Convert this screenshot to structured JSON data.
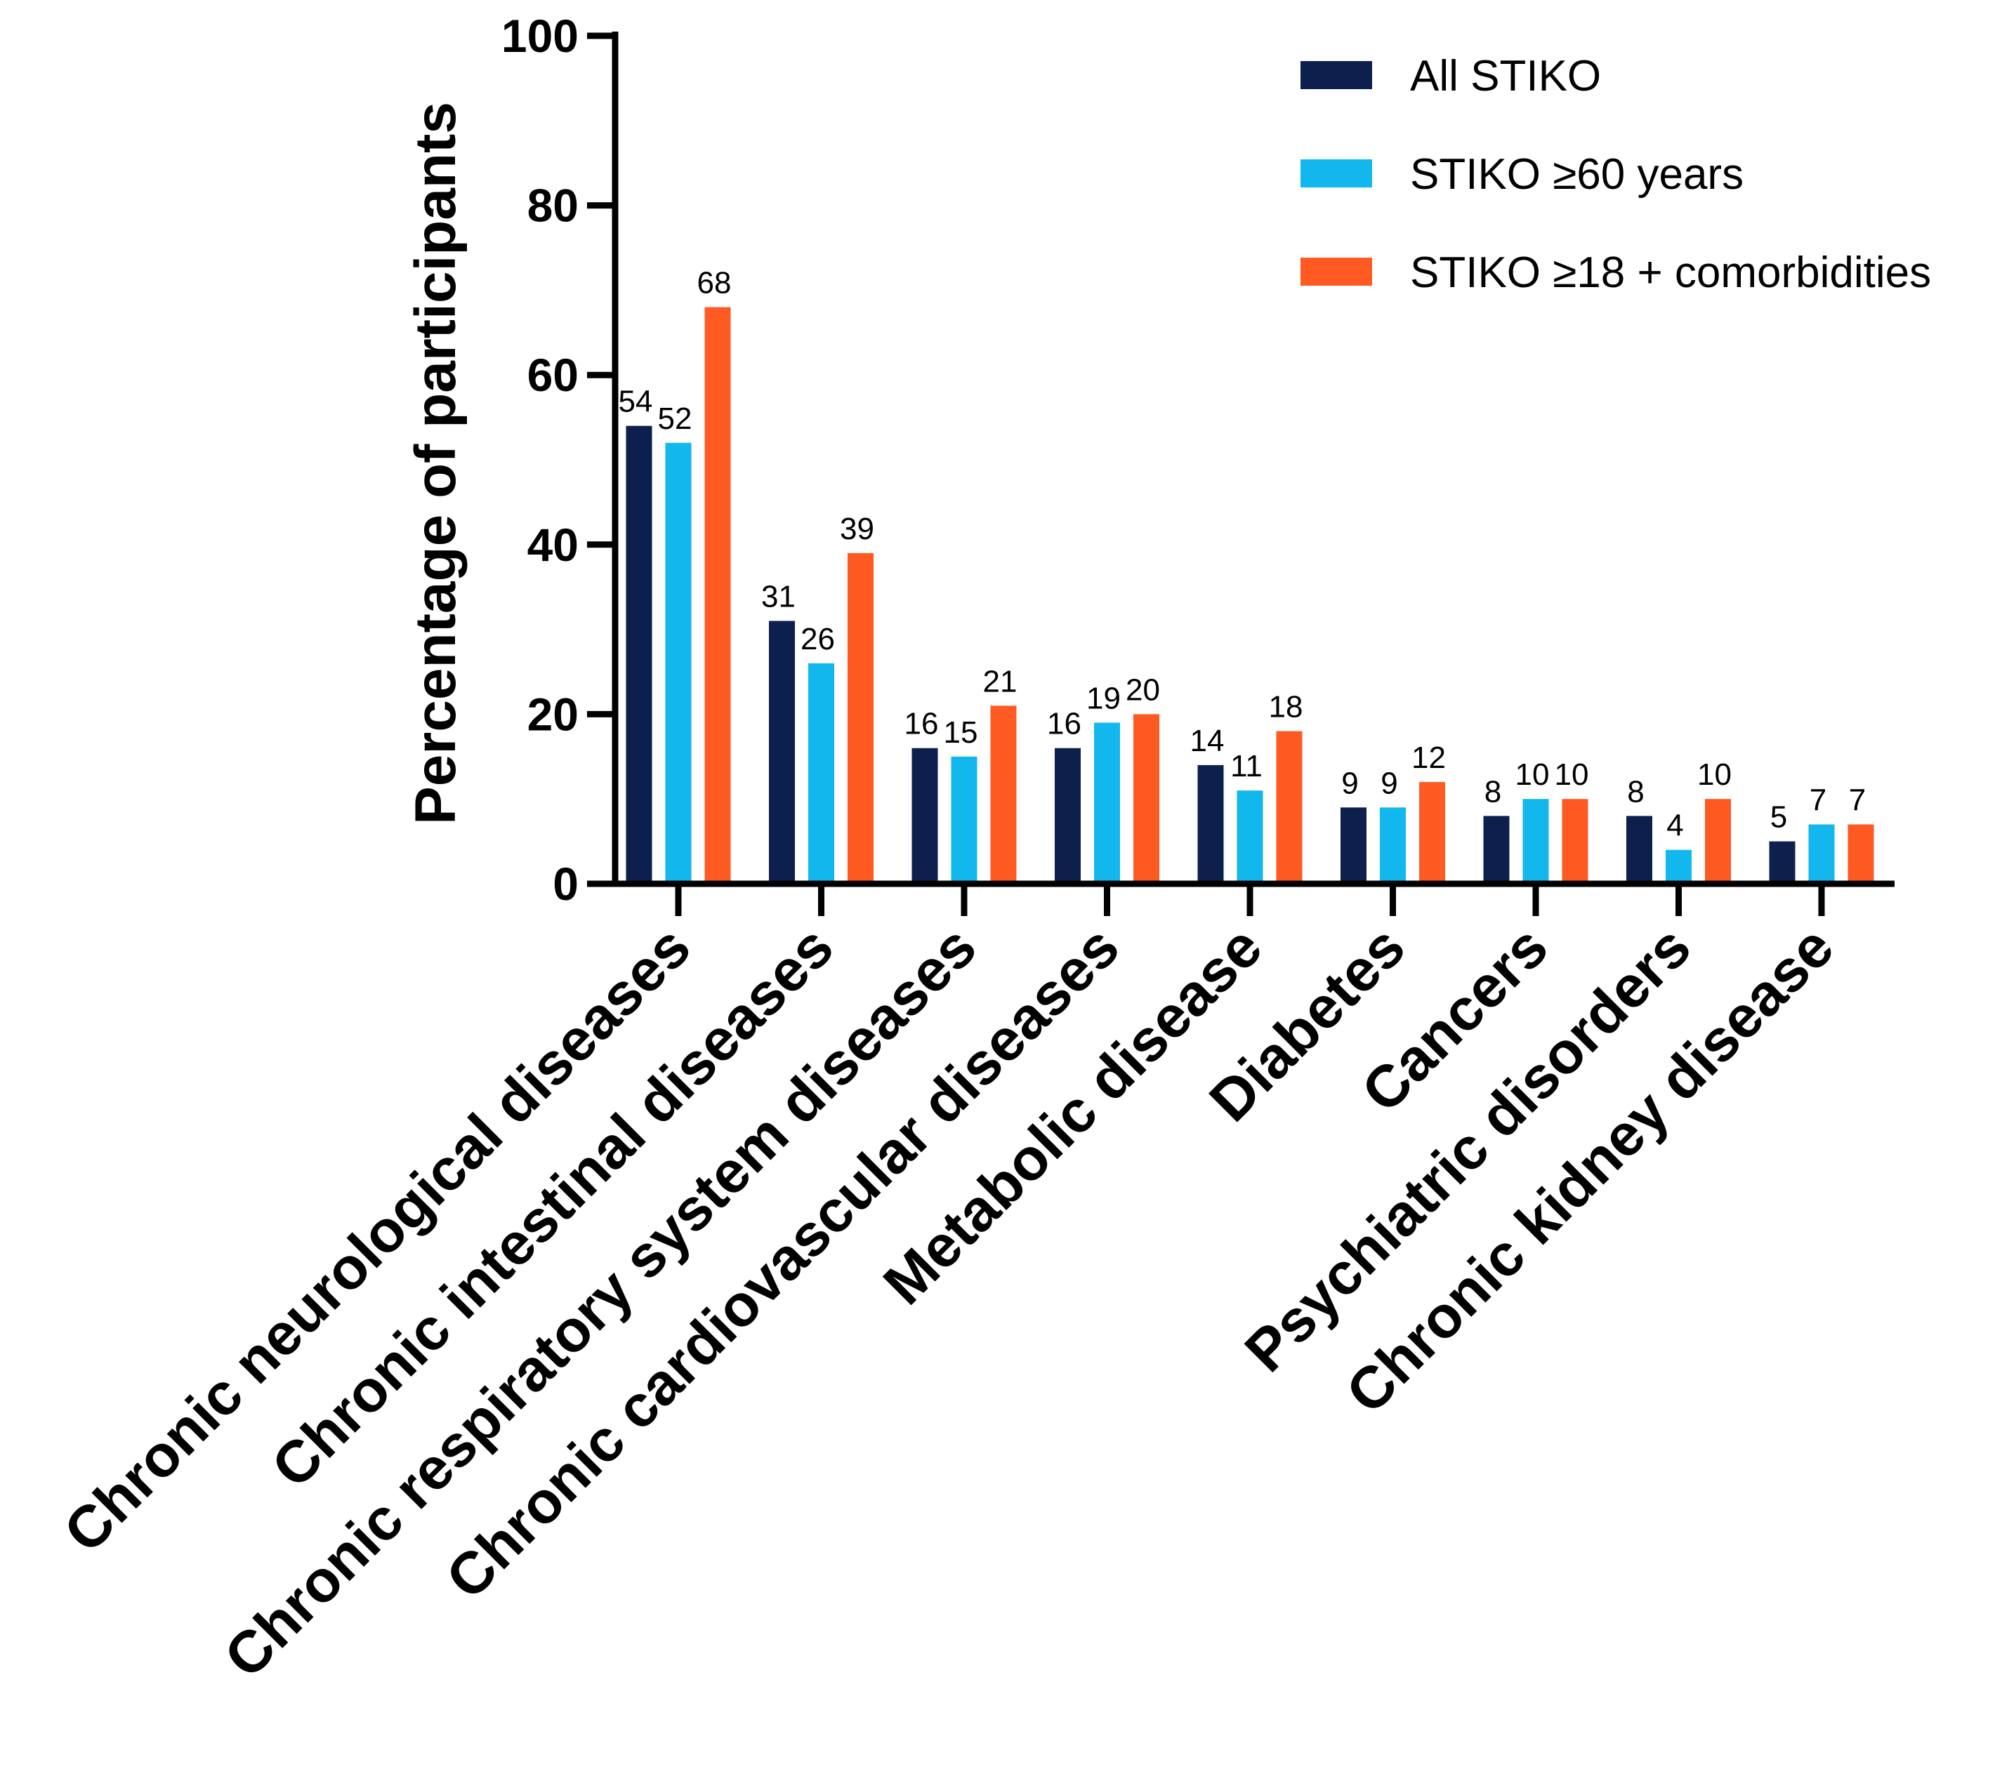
{
  "chart_data": {
    "type": "bar",
    "title": "",
    "xlabel": "",
    "ylabel": "Percentage of participants",
    "ylim": [
      0,
      100
    ],
    "yticks": [
      0,
      20,
      40,
      60,
      80,
      100
    ],
    "grid": false,
    "legend_position": "top-right",
    "categories": [
      "Chronic neurological diseases",
      "Chronic intestinal diseases",
      "Chronic respiratory system diseases",
      "Chronic cardiovascular diseases",
      "Metabolic disease",
      "Diabetes",
      "Cancers",
      "Psychiatric disorders",
      "Chronic kidney disease"
    ],
    "series": [
      {
        "name": "All STIKO",
        "color": "#0d1f4d",
        "values": [
          54,
          31,
          16,
          16,
          14,
          9,
          8,
          8,
          5
        ]
      },
      {
        "name": "STIKO ≥60 years",
        "color": "#12b7ee",
        "values": [
          52,
          26,
          15,
          19,
          11,
          9,
          10,
          4,
          7
        ]
      },
      {
        "name": "STIKO ≥18 + comorbidities",
        "color": "#ff5a22",
        "values": [
          68,
          39,
          21,
          20,
          18,
          12,
          10,
          10,
          7
        ]
      }
    ]
  }
}
